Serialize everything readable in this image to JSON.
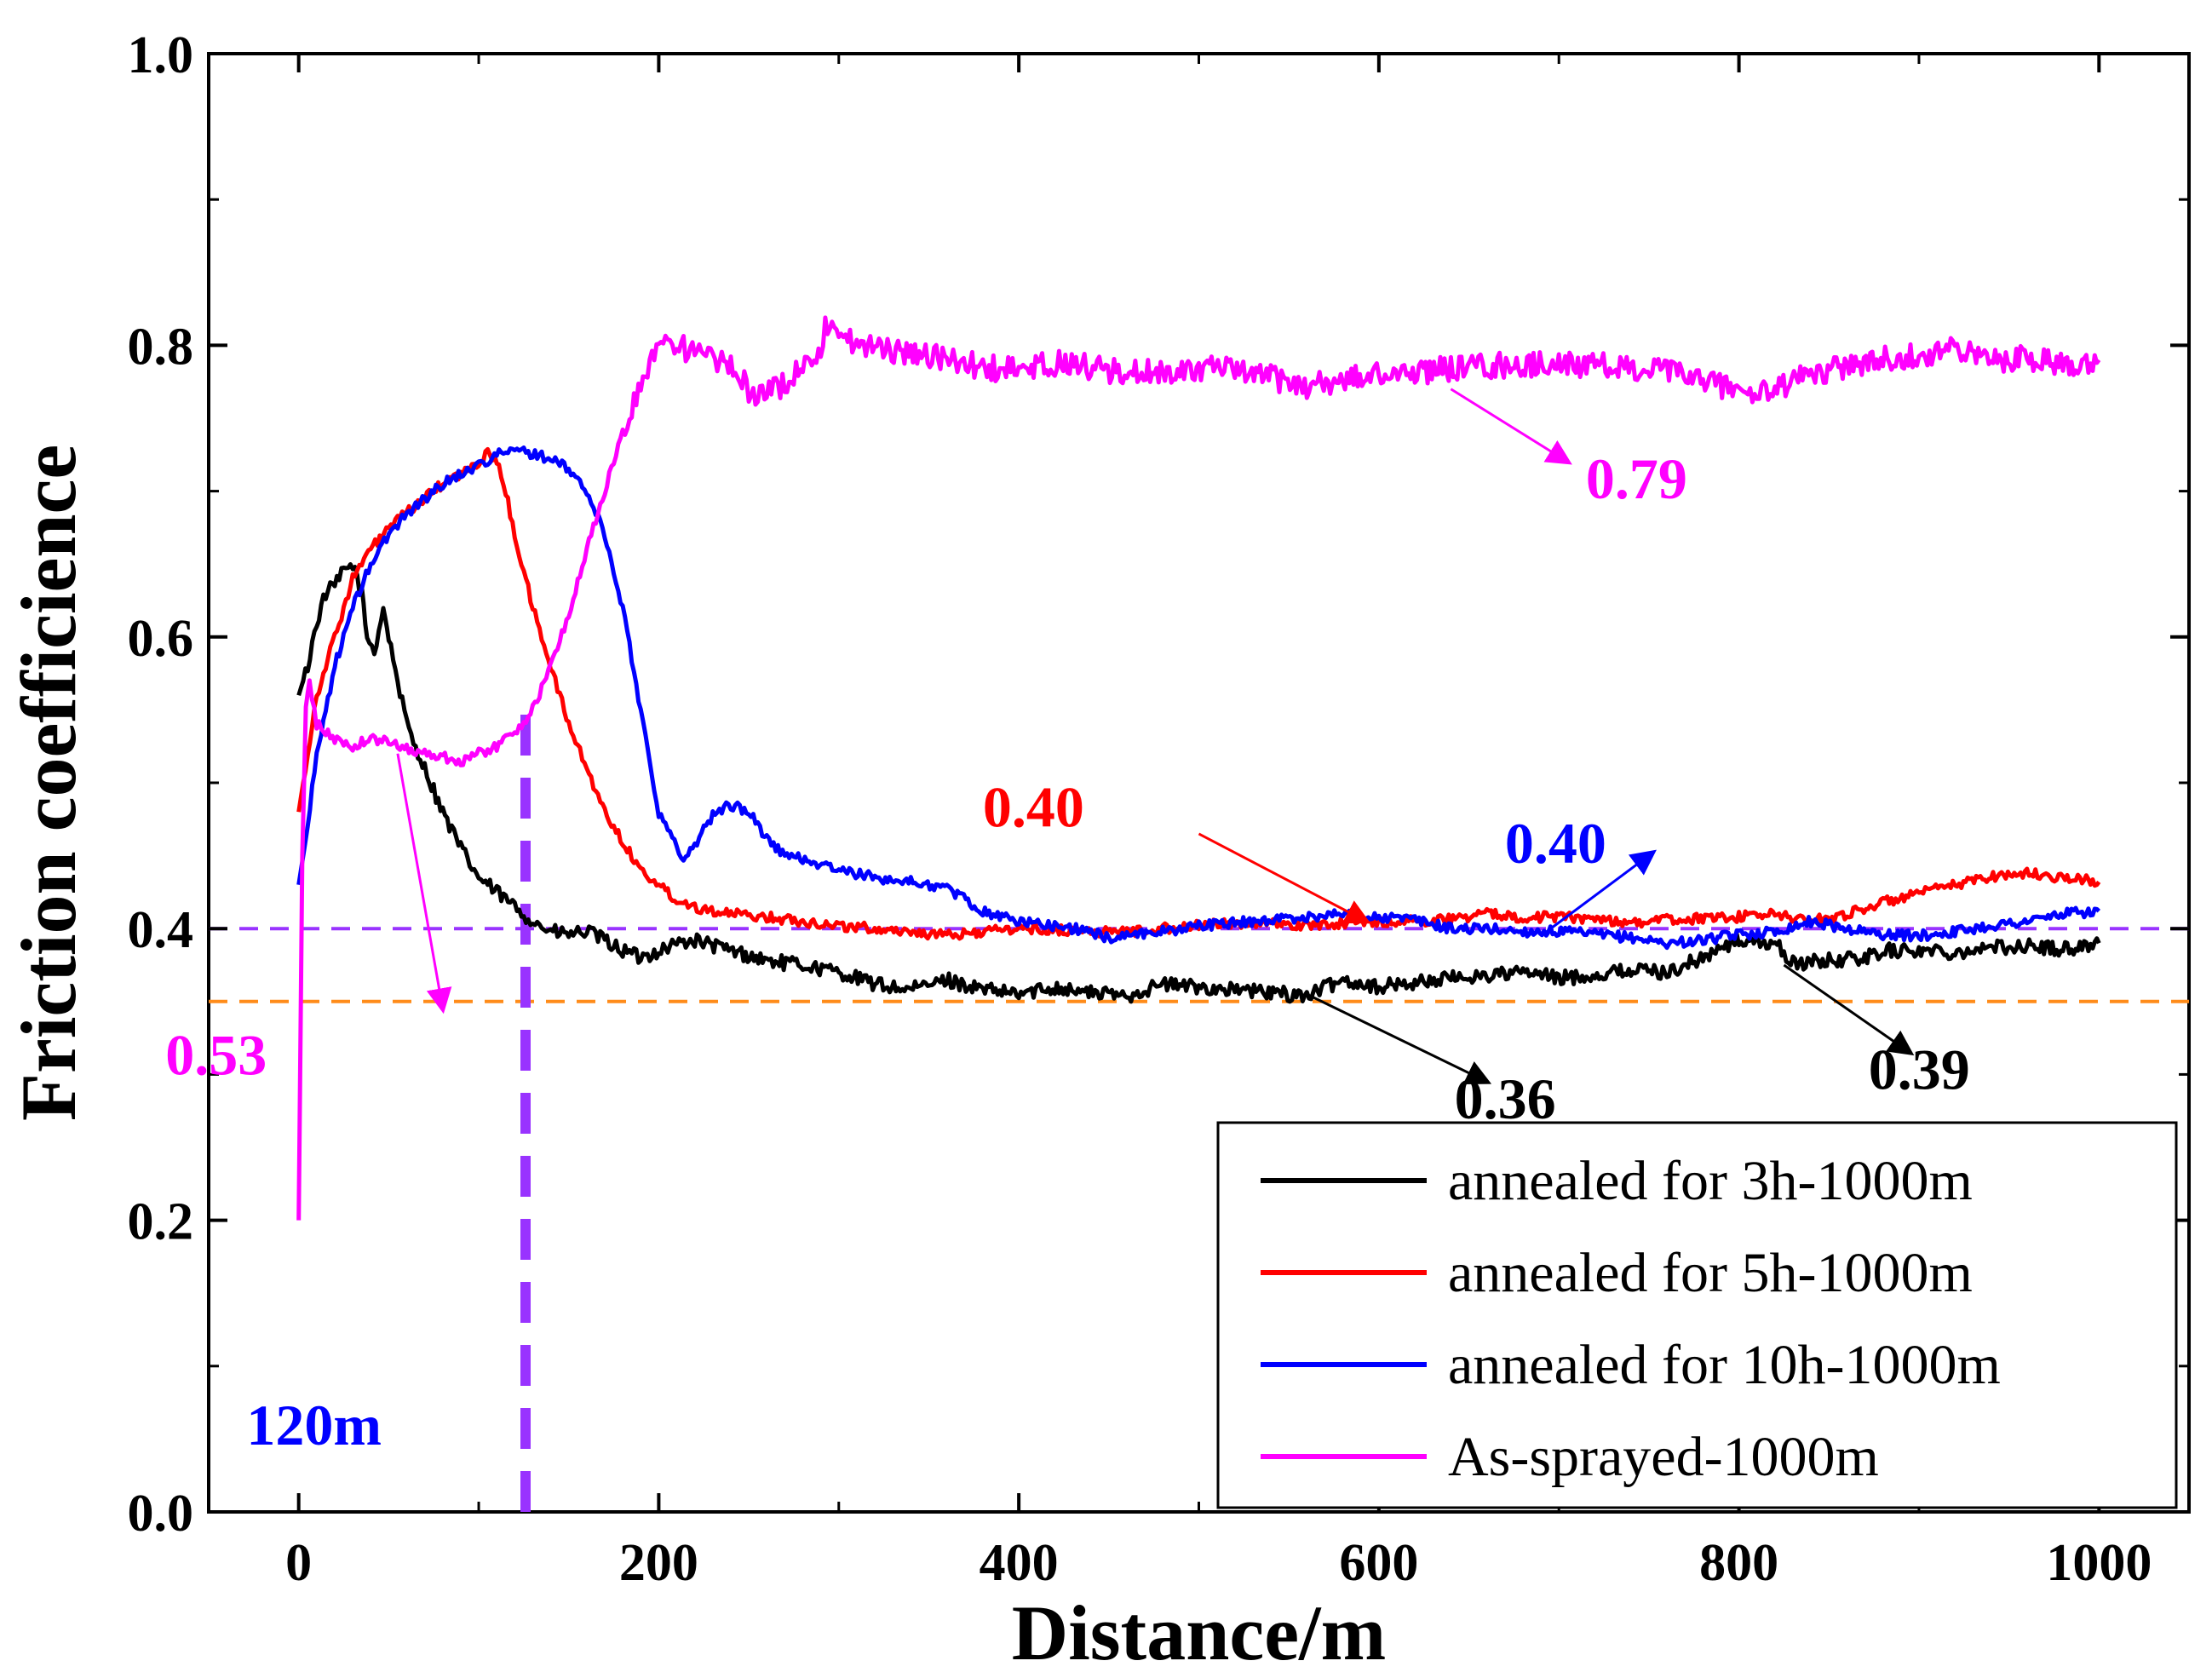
{
  "chart_data": {
    "type": "line",
    "title": "",
    "xlabel": "Distance/m",
    "ylabel": "Friction coefficience",
    "xlim": [
      -50,
      1050
    ],
    "ylim": [
      0.0,
      1.0
    ],
    "xticks": [
      0,
      200,
      400,
      600,
      800,
      1000
    ],
    "yticks": [
      0.0,
      0.2,
      0.4,
      0.6,
      0.8,
      1.0
    ],
    "xtick_labels": [
      "0",
      "200",
      "400",
      "600",
      "800",
      "1000"
    ],
    "ytick_labels": [
      "0.0",
      "0.2",
      "0.4",
      "0.6",
      "0.8",
      "1.0"
    ],
    "grid": false,
    "legend_position": "bottom-right",
    "series": [
      {
        "name": "annealed for 3h-1000m",
        "color": "#000000",
        "points": [
          [
            0,
            0.56
          ],
          [
            5,
            0.58
          ],
          [
            10,
            0.61
          ],
          [
            15,
            0.63
          ],
          [
            20,
            0.635
          ],
          [
            25,
            0.645
          ],
          [
            30,
            0.65
          ],
          [
            35,
            0.63
          ],
          [
            38,
            0.6
          ],
          [
            42,
            0.59
          ],
          [
            47,
            0.62
          ],
          [
            50,
            0.6
          ],
          [
            55,
            0.57
          ],
          [
            60,
            0.54
          ],
          [
            70,
            0.51
          ],
          [
            80,
            0.48
          ],
          [
            90,
            0.455
          ],
          [
            100,
            0.435
          ],
          [
            110,
            0.425
          ],
          [
            120,
            0.415
          ],
          [
            130,
            0.405
          ],
          [
            140,
            0.398
          ],
          [
            150,
            0.396
          ],
          [
            160,
            0.398
          ],
          [
            170,
            0.392
          ],
          [
            180,
            0.385
          ],
          [
            190,
            0.38
          ],
          [
            200,
            0.385
          ],
          [
            210,
            0.39
          ],
          [
            220,
            0.392
          ],
          [
            240,
            0.385
          ],
          [
            260,
            0.378
          ],
          [
            280,
            0.375
          ],
          [
            300,
            0.37
          ],
          [
            320,
            0.362
          ],
          [
            340,
            0.358
          ],
          [
            360,
            0.365
          ],
          [
            380,
            0.358
          ],
          [
            400,
            0.355
          ],
          [
            420,
            0.36
          ],
          [
            440,
            0.356
          ],
          [
            460,
            0.354
          ],
          [
            480,
            0.362
          ],
          [
            500,
            0.36
          ],
          [
            520,
            0.358
          ],
          [
            540,
            0.356
          ],
          [
            560,
            0.354
          ],
          [
            580,
            0.365
          ],
          [
            600,
            0.36
          ],
          [
            620,
            0.363
          ],
          [
            640,
            0.366
          ],
          [
            660,
            0.368
          ],
          [
            680,
            0.37
          ],
          [
            700,
            0.366
          ],
          [
            720,
            0.368
          ],
          [
            740,
            0.372
          ],
          [
            760,
            0.37
          ],
          [
            780,
            0.38
          ],
          [
            800,
            0.392
          ],
          [
            820,
            0.39
          ],
          [
            830,
            0.376
          ],
          [
            850,
            0.378
          ],
          [
            870,
            0.38
          ],
          [
            880,
            0.385
          ],
          [
            900,
            0.385
          ],
          [
            920,
            0.384
          ],
          [
            940,
            0.387
          ],
          [
            960,
            0.388
          ],
          [
            980,
            0.386
          ],
          [
            1000,
            0.39
          ]
        ]
      },
      {
        "name": "annealed for 5h-1000m",
        "color": "#ff0000",
        "points": [
          [
            0,
            0.48
          ],
          [
            5,
            0.52
          ],
          [
            10,
            0.56
          ],
          [
            20,
            0.6
          ],
          [
            30,
            0.64
          ],
          [
            40,
            0.66
          ],
          [
            50,
            0.675
          ],
          [
            60,
            0.685
          ],
          [
            70,
            0.695
          ],
          [
            80,
            0.705
          ],
          [
            90,
            0.712
          ],
          [
            100,
            0.718
          ],
          [
            105,
            0.728
          ],
          [
            110,
            0.72
          ],
          [
            115,
            0.7
          ],
          [
            120,
            0.67
          ],
          [
            130,
            0.62
          ],
          [
            140,
            0.58
          ],
          [
            150,
            0.54
          ],
          [
            160,
            0.51
          ],
          [
            170,
            0.48
          ],
          [
            180,
            0.46
          ],
          [
            190,
            0.44
          ],
          [
            200,
            0.43
          ],
          [
            210,
            0.42
          ],
          [
            220,
            0.415
          ],
          [
            240,
            0.41
          ],
          [
            260,
            0.408
          ],
          [
            280,
            0.405
          ],
          [
            300,
            0.402
          ],
          [
            320,
            0.4
          ],
          [
            340,
            0.398
          ],
          [
            360,
            0.395
          ],
          [
            380,
            0.398
          ],
          [
            400,
            0.4
          ],
          [
            420,
            0.399
          ],
          [
            440,
            0.398
          ],
          [
            460,
            0.398
          ],
          [
            480,
            0.4
          ],
          [
            500,
            0.402
          ],
          [
            520,
            0.404
          ],
          [
            540,
            0.403
          ],
          [
            560,
            0.402
          ],
          [
            580,
            0.404
          ],
          [
            600,
            0.405
          ],
          [
            620,
            0.405
          ],
          [
            640,
            0.407
          ],
          [
            660,
            0.41
          ],
          [
            680,
            0.408
          ],
          [
            700,
            0.408
          ],
          [
            720,
            0.407
          ],
          [
            740,
            0.404
          ],
          [
            760,
            0.406
          ],
          [
            780,
            0.407
          ],
          [
            800,
            0.408
          ],
          [
            820,
            0.41
          ],
          [
            840,
            0.405
          ],
          [
            860,
            0.41
          ],
          [
            880,
            0.418
          ],
          [
            900,
            0.424
          ],
          [
            920,
            0.43
          ],
          [
            940,
            0.436
          ],
          [
            960,
            0.438
          ],
          [
            980,
            0.435
          ],
          [
            1000,
            0.432
          ]
        ]
      },
      {
        "name": "annealed for 10h-1000m",
        "color": "#0000ff",
        "points": [
          [
            0,
            0.43
          ],
          [
            5,
            0.47
          ],
          [
            10,
            0.52
          ],
          [
            20,
            0.58
          ],
          [
            30,
            0.62
          ],
          [
            40,
            0.65
          ],
          [
            50,
            0.67
          ],
          [
            60,
            0.685
          ],
          [
            70,
            0.695
          ],
          [
            80,
            0.705
          ],
          [
            90,
            0.712
          ],
          [
            100,
            0.718
          ],
          [
            110,
            0.725
          ],
          [
            120,
            0.728
          ],
          [
            130,
            0.726
          ],
          [
            140,
            0.722
          ],
          [
            150,
            0.715
          ],
          [
            160,
            0.7
          ],
          [
            170,
            0.67
          ],
          [
            180,
            0.62
          ],
          [
            190,
            0.55
          ],
          [
            200,
            0.48
          ],
          [
            210,
            0.455
          ],
          [
            215,
            0.448
          ],
          [
            220,
            0.458
          ],
          [
            230,
            0.478
          ],
          [
            240,
            0.485
          ],
          [
            250,
            0.48
          ],
          [
            260,
            0.462
          ],
          [
            270,
            0.45
          ],
          [
            280,
            0.448
          ],
          [
            300,
            0.44
          ],
          [
            320,
            0.435
          ],
          [
            340,
            0.432
          ],
          [
            360,
            0.428
          ],
          [
            380,
            0.412
          ],
          [
            400,
            0.405
          ],
          [
            420,
            0.402
          ],
          [
            440,
            0.398
          ],
          [
            450,
            0.393
          ],
          [
            460,
            0.396
          ],
          [
            480,
            0.398
          ],
          [
            500,
            0.402
          ],
          [
            520,
            0.404
          ],
          [
            540,
            0.406
          ],
          [
            560,
            0.408
          ],
          [
            580,
            0.41
          ],
          [
            600,
            0.408
          ],
          [
            620,
            0.406
          ],
          [
            640,
            0.4
          ],
          [
            660,
            0.4
          ],
          [
            680,
            0.398
          ],
          [
            700,
            0.398
          ],
          [
            720,
            0.396
          ],
          [
            740,
            0.394
          ],
          [
            760,
            0.39
          ],
          [
            780,
            0.392
          ],
          [
            800,
            0.396
          ],
          [
            820,
            0.398
          ],
          [
            840,
            0.405
          ],
          [
            860,
            0.4
          ],
          [
            880,
            0.396
          ],
          [
            900,
            0.395
          ],
          [
            920,
            0.398
          ],
          [
            940,
            0.402
          ],
          [
            960,
            0.405
          ],
          [
            980,
            0.41
          ],
          [
            1000,
            0.412
          ]
        ]
      },
      {
        "name": "As-sprayed-1000m",
        "color": "#ff00ff",
        "points": [
          [
            0,
            0.2
          ],
          [
            2,
            0.45
          ],
          [
            4,
            0.55
          ],
          [
            6,
            0.57
          ],
          [
            10,
            0.54
          ],
          [
            20,
            0.53
          ],
          [
            30,
            0.525
          ],
          [
            40,
            0.53
          ],
          [
            50,
            0.528
          ],
          [
            60,
            0.524
          ],
          [
            70,
            0.52
          ],
          [
            80,
            0.518
          ],
          [
            90,
            0.515
          ],
          [
            100,
            0.52
          ],
          [
            110,
            0.525
          ],
          [
            120,
            0.535
          ],
          [
            130,
            0.55
          ],
          [
            140,
            0.58
          ],
          [
            150,
            0.615
          ],
          [
            160,
            0.66
          ],
          [
            170,
            0.7
          ],
          [
            180,
            0.74
          ],
          [
            190,
            0.77
          ],
          [
            195,
            0.79
          ],
          [
            200,
            0.805
          ],
          [
            210,
            0.8
          ],
          [
            220,
            0.795
          ],
          [
            230,
            0.79
          ],
          [
            240,
            0.785
          ],
          [
            250,
            0.77
          ],
          [
            260,
            0.765
          ],
          [
            270,
            0.775
          ],
          [
            280,
            0.785
          ],
          [
            290,
            0.8
          ],
          [
            295,
            0.82
          ],
          [
            300,
            0.81
          ],
          [
            310,
            0.8
          ],
          [
            320,
            0.798
          ],
          [
            340,
            0.795
          ],
          [
            360,
            0.79
          ],
          [
            380,
            0.785
          ],
          [
            400,
            0.782
          ],
          [
            420,
            0.788
          ],
          [
            440,
            0.785
          ],
          [
            460,
            0.78
          ],
          [
            480,
            0.782
          ],
          [
            500,
            0.785
          ],
          [
            520,
            0.782
          ],
          [
            540,
            0.778
          ],
          [
            560,
            0.772
          ],
          [
            580,
            0.776
          ],
          [
            600,
            0.78
          ],
          [
            620,
            0.782
          ],
          [
            640,
            0.784
          ],
          [
            660,
            0.786
          ],
          [
            680,
            0.786
          ],
          [
            700,
            0.788
          ],
          [
            720,
            0.786
          ],
          [
            740,
            0.784
          ],
          [
            760,
            0.782
          ],
          [
            780,
            0.776
          ],
          [
            800,
            0.77
          ],
          [
            810,
            0.765
          ],
          [
            820,
            0.77
          ],
          [
            840,
            0.78
          ],
          [
            860,
            0.786
          ],
          [
            880,
            0.79
          ],
          [
            900,
            0.794
          ],
          [
            920,
            0.797
          ],
          [
            940,
            0.79
          ],
          [
            960,
            0.792
          ],
          [
            980,
            0.788
          ],
          [
            1000,
            0.79
          ]
        ]
      }
    ],
    "reference_lines": [
      {
        "axis": "y",
        "value": 0.4,
        "color": "#9933ff",
        "style": "dashed"
      },
      {
        "axis": "y",
        "value": 0.35,
        "color": "#ff8c1a",
        "style": "dashed"
      },
      {
        "axis": "x",
        "value": 126,
        "color": "#9933ff",
        "style": "dashed-thick",
        "y_from": 0.0,
        "y_to": 0.55
      }
    ],
    "annotations": [
      {
        "text": "0.79",
        "color": "#ff00ff",
        "text_x": 715,
        "text_y": 0.695,
        "arrow_from": [
          640,
          0.77
        ],
        "arrow_to": [
          705,
          0.72
        ]
      },
      {
        "text": "0.40",
        "color": "#ff0000",
        "text_x": 380,
        "text_y": 0.47,
        "arrow_from": [
          500,
          0.465
        ],
        "arrow_to": [
          593,
          0.405
        ]
      },
      {
        "text": "0.40",
        "color": "#0000ff",
        "text_x": 670,
        "text_y": 0.445,
        "arrow_from": [
          690,
          0.395
        ],
        "arrow_to": [
          752,
          0.452
        ]
      },
      {
        "text": "0.53",
        "color": "#ff00ff",
        "text_x": -74,
        "text_y": 0.3,
        "arrow_from": [
          55,
          0.52
        ],
        "arrow_to": [
          80,
          0.345
        ]
      },
      {
        "text": "0.36",
        "color": "#000000",
        "text_x": 642,
        "text_y": 0.27,
        "arrow_from": [
          560,
          0.355
        ],
        "arrow_to": [
          660,
          0.295
        ]
      },
      {
        "text": "0.39",
        "color": "#000000",
        "text_x": 872,
        "text_y": 0.29,
        "arrow_from": [
          825,
          0.375
        ],
        "arrow_to": [
          895,
          0.315
        ]
      },
      {
        "text": "120m",
        "color": "#0000ff",
        "text_x": -29,
        "text_y": 0.046
      }
    ]
  }
}
